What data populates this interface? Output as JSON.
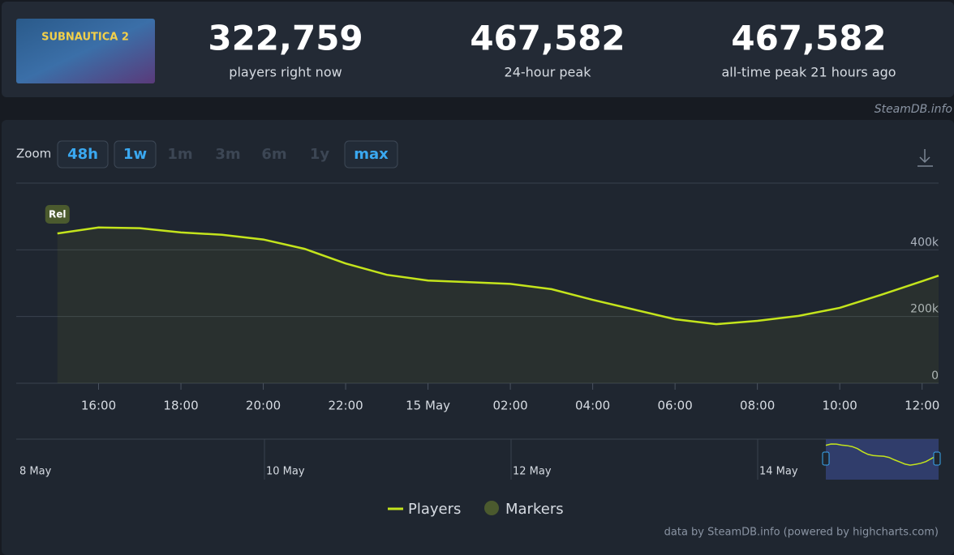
{
  "header": {
    "logo_text": "SUBNAUTICA 2",
    "stats": [
      {
        "value": "322,759",
        "label": "players right now"
      },
      {
        "value": "467,582",
        "label": "24-hour peak"
      },
      {
        "value": "467,582",
        "label": "all-time peak 21 hours ago"
      }
    ],
    "watermark": "SteamDB.info"
  },
  "zoom": {
    "label": "Zoom",
    "options": [
      {
        "label": "48h",
        "active": true
      },
      {
        "label": "1w",
        "active": true
      },
      {
        "label": "1m",
        "active": false
      },
      {
        "label": "3m",
        "active": false
      },
      {
        "label": "6m",
        "active": false
      },
      {
        "label": "1y",
        "active": false
      },
      {
        "label": "max",
        "active": true
      }
    ]
  },
  "chart_data": {
    "type": "line",
    "x": [
      15,
      16,
      17,
      18,
      19,
      20,
      21,
      22,
      23,
      24,
      25,
      26,
      27,
      28,
      29,
      30,
      31,
      32,
      33,
      34,
      35,
      36,
      36.4
    ],
    "series": [
      {
        "name": "Players",
        "color": "#c4e41c",
        "values": [
          449000,
          467000,
          465000,
          452000,
          445000,
          431000,
          403000,
          359000,
          325000,
          308000,
          303000,
          298000,
          282000,
          250000,
          221000,
          192000,
          177000,
          187000,
          202000,
          226000,
          265000,
          306000,
          322759
        ]
      }
    ],
    "markers_legend": {
      "name": "Markers",
      "color": "#4b5a2e"
    },
    "markers": [
      {
        "label": "Rel",
        "x": 15
      }
    ],
    "xlim": [
      14,
      36.4
    ],
    "xticks": [
      {
        "value": 16,
        "label": "16:00"
      },
      {
        "value": 18,
        "label": "18:00"
      },
      {
        "value": 20,
        "label": "20:00"
      },
      {
        "value": 22,
        "label": "22:00"
      },
      {
        "value": 24,
        "label": "15 May"
      },
      {
        "value": 26,
        "label": "02:00"
      },
      {
        "value": 28,
        "label": "04:00"
      },
      {
        "value": 30,
        "label": "06:00"
      },
      {
        "value": 32,
        "label": "08:00"
      },
      {
        "value": 34,
        "label": "10:00"
      },
      {
        "value": 36,
        "label": "12:00"
      }
    ],
    "ylim": [
      0,
      600000
    ],
    "yticks": [
      0,
      {
        "value": 200000,
        "label": "200k"
      },
      {
        "value": 400000,
        "label": "400k"
      }
    ],
    "grid": true,
    "navigator_labels": [
      "8 May",
      "10 May",
      "12 May",
      "14 May"
    ],
    "credit": "data by SteamDB.info (powered by highcharts.com)"
  }
}
